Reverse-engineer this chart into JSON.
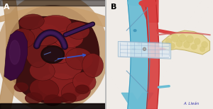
{
  "figsize": [
    3.0,
    1.54
  ],
  "dpi": 100,
  "panel_A_label": "A",
  "panel_B_label": "B",
  "label_fontsize": 8,
  "label_fontweight": "bold",
  "background_color": "#f0ece8",
  "panel_A_bg": "#3d0808",
  "panel_B_bg": "#f5f5f5",
  "blue_vessel_color": "#6bbdd4",
  "blue_vessel_edge": "#3a9abf",
  "red_vessel_color": "#d94040",
  "red_vessel_edge": "#b82020",
  "pancreas_color": "#e8d898",
  "pancreas_edge": "#c8b870",
  "mesh_color": "#dde8f0",
  "mesh_edge": "#9ab8cc",
  "signature": "A. Lleán",
  "sig_color": "#3333aa",
  "sig_fontsize": 4
}
